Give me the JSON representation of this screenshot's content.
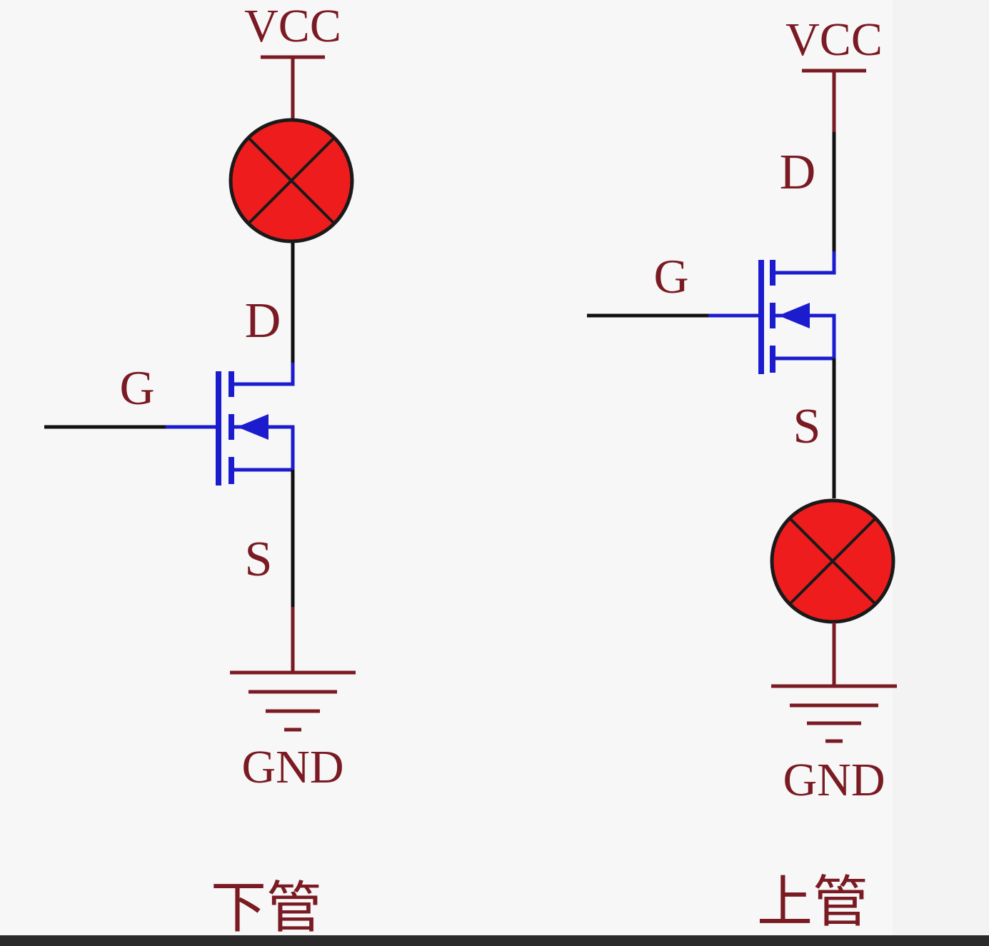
{
  "labels": {
    "vcc": "VCC",
    "gnd": "GND",
    "drain": "D",
    "gate": "G",
    "source": "S"
  },
  "circuits": {
    "low_side": {
      "caption": "下管"
    },
    "high_side": {
      "caption": "上管"
    }
  },
  "colors": {
    "power_wire": "#7a1a22",
    "signal_wire": "#111111",
    "mosfet": "#1c1ccf",
    "lamp_fill": "#ee1c1c",
    "label_text": "#7a1a22",
    "background": "#f3f3f3"
  }
}
